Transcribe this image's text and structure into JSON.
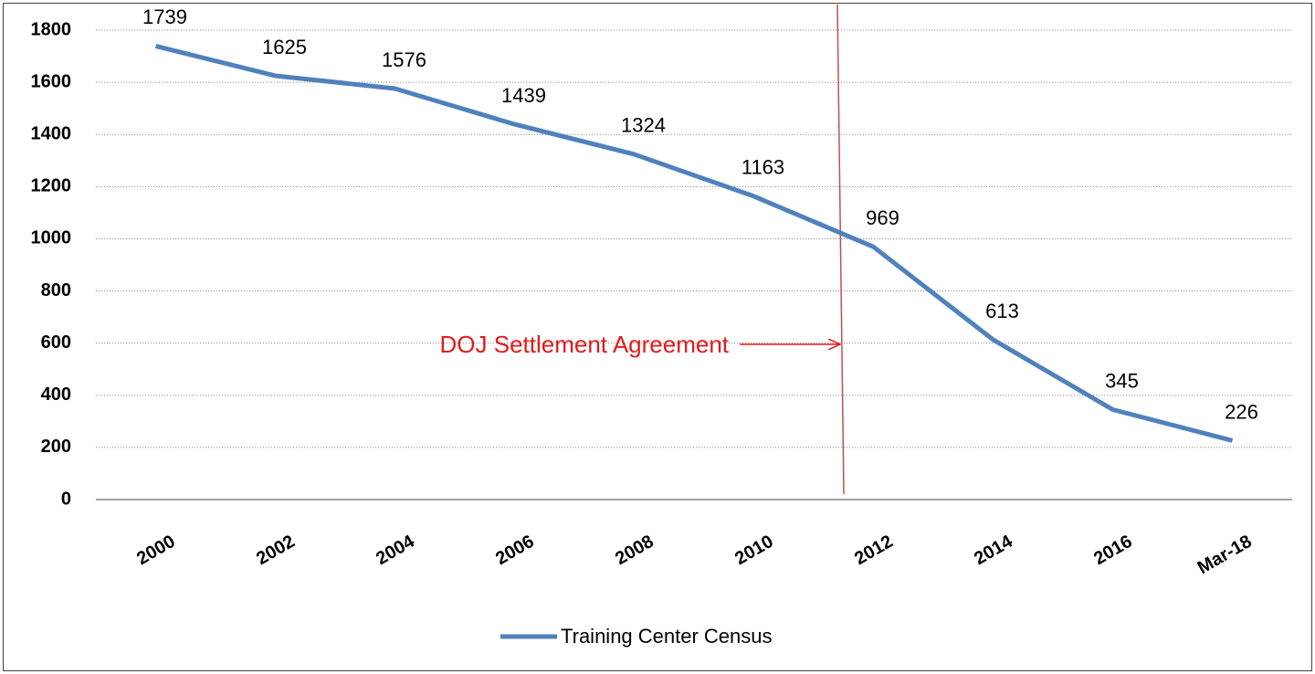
{
  "chart_data": {
    "type": "line",
    "categories": [
      "2000",
      "2002",
      "2004",
      "2006",
      "2008",
      "2010",
      "2012",
      "2014",
      "2016",
      "Mar-18"
    ],
    "series": [
      {
        "name": "Training Center Census",
        "color": "#4f81bd",
        "values": [
          1739,
          1625,
          1576,
          1439,
          1324,
          1163,
          969,
          613,
          345,
          226
        ]
      }
    ],
    "ylim": [
      0,
      1800
    ],
    "yticks": [
      0,
      200,
      400,
      600,
      800,
      1000,
      1200,
      1400,
      1600,
      1800
    ],
    "grid": true,
    "legend": "bottom",
    "annotation": "DOJ Settlement Agreement",
    "annotation_color": "#e41a1c"
  }
}
